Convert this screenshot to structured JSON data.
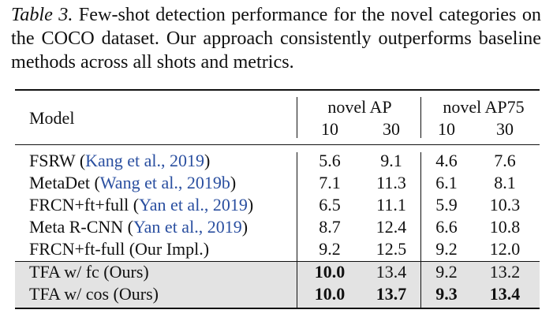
{
  "caption": {
    "label": "Table 3.",
    "text": " Few-shot detection performance for the novel categories on the COCO dataset. Our approach consistently outperforms baseline methods across all shots and metrics."
  },
  "table": {
    "model_header": "Model",
    "groups": [
      {
        "label": "novel AP",
        "shots": [
          "10",
          "30"
        ]
      },
      {
        "label": "novel AP75",
        "shots": [
          "10",
          "30"
        ]
      }
    ],
    "rows": [
      {
        "name": "FSRW",
        "cite": "Kang et al., 2019",
        "values": [
          "5.6",
          "9.1",
          "4.6",
          "7.6"
        ]
      },
      {
        "name": "MetaDet",
        "cite": "Wang et al., 2019b",
        "values": [
          "7.1",
          "11.3",
          "6.1",
          "8.1"
        ]
      },
      {
        "name": "FRCN+ft+full",
        "cite": "Yan et al., 2019",
        "values": [
          "6.5",
          "11.1",
          "5.9",
          "10.3"
        ]
      },
      {
        "name": "Meta R-CNN",
        "cite": "Yan et al., 2019",
        "values": [
          "8.7",
          "12.4",
          "6.6",
          "10.8"
        ]
      },
      {
        "name": "FRCN+ft-full (Our Impl.)",
        "cite": "",
        "values": [
          "9.2",
          "12.5",
          "9.2",
          "12.0"
        ]
      },
      {
        "name": "TFA w/ fc (Ours)",
        "cite": "",
        "values": [
          "10.0",
          "13.4",
          "9.2",
          "13.2"
        ]
      },
      {
        "name": "TFA w/ cos (Ours)",
        "cite": "",
        "values": [
          "10.0",
          "13.7",
          "9.3",
          "13.4"
        ]
      }
    ],
    "highlight": "#e3e3e3",
    "cite_color": "#2a4fa0"
  }
}
